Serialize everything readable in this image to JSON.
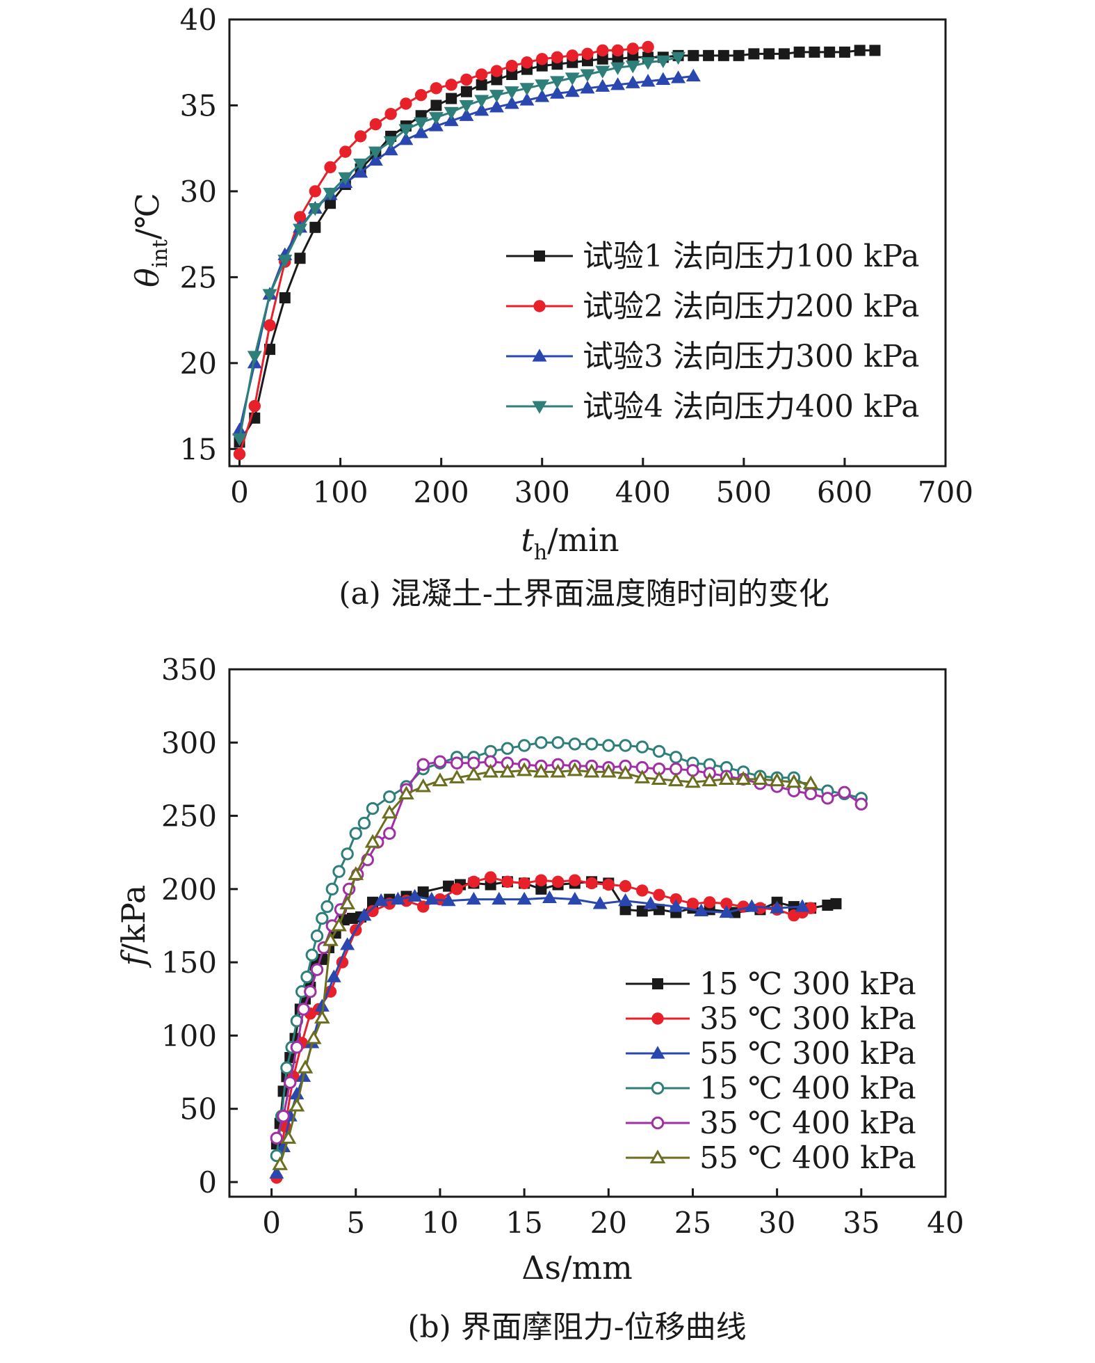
{
  "chart_data": [
    {
      "id": "a",
      "type": "line",
      "caption": "(a) 混凝土-土界面温度随时间的变化",
      "xlabel_main": "t",
      "xlabel_sub": "h",
      "xlabel_unit": "/min",
      "ylabel_main": "θ",
      "ylabel_sub": "int",
      "ylabel_unit": "/℃",
      "xlim": [
        -10,
        700
      ],
      "ylim": [
        14,
        40
      ],
      "xticks": [
        0,
        100,
        200,
        300,
        400,
        500,
        600,
        700
      ],
      "yticks": [
        15,
        20,
        25,
        30,
        35,
        40
      ],
      "legend_position": "center-right",
      "series": [
        {
          "name": "试验1 法向压力100 kPa",
          "color": "#1a1a1a",
          "marker": "square",
          "x": [
            0,
            15,
            30,
            45,
            60,
            75,
            90,
            105,
            120,
            135,
            150,
            165,
            180,
            195,
            210,
            225,
            240,
            255,
            270,
            285,
            300,
            315,
            330,
            345,
            360,
            375,
            390,
            405,
            420,
            435,
            450,
            465,
            480,
            495,
            510,
            525,
            540,
            555,
            570,
            585,
            600,
            615,
            630
          ],
          "y": [
            15.4,
            16.8,
            20.8,
            23.8,
            26.1,
            27.9,
            29.3,
            30.4,
            31.3,
            32.2,
            33.2,
            33.8,
            34.4,
            35.0,
            35.4,
            35.8,
            36.2,
            36.5,
            36.8,
            37.1,
            37.3,
            37.4,
            37.5,
            37.6,
            37.7,
            37.7,
            37.8,
            37.8,
            37.8,
            37.9,
            37.9,
            37.9,
            37.9,
            37.9,
            38.0,
            38.0,
            38.0,
            38.1,
            38.1,
            38.1,
            38.1,
            38.2,
            38.2
          ]
        },
        {
          "name": "试验2 法向压力200 kPa",
          "color": "#e8202a",
          "marker": "circle",
          "x": [
            0,
            15,
            30,
            45,
            60,
            75,
            90,
            105,
            120,
            135,
            150,
            165,
            180,
            195,
            210,
            225,
            240,
            255,
            270,
            285,
            300,
            315,
            330,
            345,
            360,
            375,
            390,
            405
          ],
          "y": [
            14.7,
            17.5,
            22.2,
            25.9,
            28.5,
            30.0,
            31.4,
            32.3,
            33.2,
            33.9,
            34.5,
            35.1,
            35.6,
            36.0,
            36.2,
            36.5,
            36.8,
            37.0,
            37.3,
            37.5,
            37.7,
            37.8,
            37.9,
            38.0,
            38.2,
            38.2,
            38.3,
            38.4
          ]
        },
        {
          "name": "试验3 法向压力300 kPa",
          "color": "#2a47b0",
          "marker": "triangle-up",
          "x": [
            0,
            15,
            30,
            45,
            60,
            75,
            90,
            105,
            120,
            135,
            150,
            165,
            180,
            195,
            210,
            225,
            240,
            255,
            270,
            285,
            300,
            315,
            330,
            345,
            360,
            375,
            390,
            405,
            420,
            435,
            450
          ],
          "y": [
            16.1,
            20.0,
            24.0,
            26.3,
            27.9,
            29.0,
            29.8,
            30.5,
            31.1,
            31.8,
            32.4,
            33.0,
            33.4,
            33.8,
            34.1,
            34.4,
            34.7,
            34.9,
            35.1,
            35.3,
            35.5,
            35.7,
            35.8,
            36.0,
            36.1,
            36.2,
            36.3,
            36.4,
            36.5,
            36.6,
            36.7
          ]
        },
        {
          "name": "试验4 法向压力400 kPa",
          "color": "#2e7f7a",
          "marker": "triangle-down",
          "x": [
            0,
            15,
            30,
            45,
            60,
            75,
            90,
            105,
            120,
            135,
            150,
            165,
            180,
            195,
            210,
            225,
            240,
            255,
            270,
            285,
            300,
            315,
            330,
            345,
            360,
            375,
            390,
            405,
            420,
            435
          ],
          "y": [
            15.6,
            20.4,
            24.0,
            26.0,
            27.8,
            29.0,
            29.9,
            30.8,
            31.6,
            32.3,
            32.9,
            33.6,
            34.0,
            34.3,
            34.6,
            35.0,
            35.3,
            35.6,
            35.8,
            36.0,
            36.2,
            36.4,
            36.6,
            36.8,
            37.0,
            37.2,
            37.3,
            37.5,
            37.6,
            37.8
          ]
        }
      ]
    },
    {
      "id": "b",
      "type": "line",
      "caption": "(b) 界面摩阻力-位移曲线",
      "xlabel_main": "Δs",
      "xlabel_unit": "/mm",
      "ylabel_main": "f",
      "ylabel_unit": "/kPa",
      "xlim": [
        -2.5,
        40
      ],
      "ylim": [
        -10,
        350
      ],
      "xticks": [
        0,
        5,
        10,
        15,
        20,
        25,
        30,
        35,
        40
      ],
      "yticks": [
        0,
        50,
        100,
        150,
        200,
        250,
        300,
        350
      ],
      "legend_position": "lower-right",
      "series": [
        {
          "name": "15 ℃ 300 kPa",
          "color": "#1a1a1a",
          "marker": "square",
          "filled": true,
          "x": [
            0.3,
            0.5,
            0.7,
            0.9,
            1.1,
            1.4,
            1.7,
            2.0,
            2.3,
            2.6,
            3.0,
            3.4,
            3.8,
            4.3,
            4.8,
            5.3,
            6.0,
            7.0,
            8.0,
            9.0,
            10.5,
            11.2,
            12.0,
            13.0,
            14.0,
            15.0,
            16.0,
            17.0,
            18.0,
            19.0,
            20.0,
            21.0,
            22.0,
            23.0,
            24.0,
            25.0,
            26.0,
            27.5,
            29.0,
            30.0,
            31.0,
            32.0,
            33.0,
            33.5
          ],
          "y": [
            26,
            40,
            62,
            72,
            85,
            98,
            118,
            125,
            133,
            148,
            152,
            160,
            170,
            179,
            180,
            181,
            191,
            193,
            195,
            198,
            202,
            203,
            204,
            203,
            205,
            204,
            200,
            203,
            204,
            205,
            204,
            186,
            185,
            186,
            184,
            187,
            186,
            184,
            186,
            191,
            188,
            187,
            189,
            190
          ]
        },
        {
          "name": "35 ℃ 300 kPa",
          "color": "#e8202a",
          "marker": "circle",
          "filled": true,
          "x": [
            0.3,
            0.8,
            1.3,
            1.8,
            2.3,
            2.8,
            3.5,
            4.2,
            5.0,
            6.0,
            7.0,
            8.0,
            9.0,
            10.0,
            11.0,
            12.0,
            13.0,
            14.0,
            15.0,
            16.0,
            17.0,
            18.0,
            19.0,
            20.0,
            21.0,
            22.0,
            23.0,
            24.0,
            25.0,
            26.0,
            27.0,
            28.0,
            29.0,
            30.0,
            31.0,
            31.5,
            32.0
          ],
          "y": [
            3,
            38,
            72,
            95,
            115,
            118,
            130,
            150,
            172,
            185,
            190,
            192,
            188,
            193,
            200,
            205,
            208,
            205,
            204,
            206,
            205,
            206,
            204,
            203,
            202,
            199,
            196,
            193,
            190,
            191,
            190,
            188,
            187,
            186,
            182,
            184,
            187
          ]
        },
        {
          "name": "55 ℃ 300 kPa",
          "color": "#2a47b0",
          "marker": "triangle-up",
          "filled": true,
          "x": [
            0.3,
            0.7,
            1.1,
            1.5,
            1.9,
            2.4,
            3.0,
            3.7,
            4.5,
            5.5,
            6.5,
            7.5,
            8.5,
            9.5,
            10.5,
            12.0,
            13.5,
            15.0,
            16.5,
            18.0,
            19.5,
            21.0,
            22.5,
            24.0,
            25.5,
            27.0,
            28.5,
            30.0,
            31.5
          ],
          "y": [
            6,
            24,
            45,
            60,
            72,
            95,
            120,
            140,
            162,
            182,
            192,
            193,
            195,
            193,
            192,
            193,
            193,
            193,
            194,
            193,
            190,
            192,
            190,
            188,
            185,
            184,
            188,
            187,
            188
          ]
        },
        {
          "name": "15 ℃ 400 kPa",
          "color": "#2e7f7a",
          "marker": "circle",
          "filled": false,
          "x": [
            0.3,
            0.6,
            0.9,
            1.2,
            1.5,
            1.8,
            2.1,
            2.4,
            2.7,
            3.0,
            3.3,
            3.6,
            4.0,
            4.5,
            5.0,
            5.5,
            6.0,
            7.0,
            8.0,
            9.0,
            10.0,
            11.0,
            12.0,
            13.0,
            14.0,
            15.0,
            16.0,
            17.0,
            18.0,
            19.0,
            20.0,
            21.0,
            22.0,
            23.0,
            24.0,
            25.0,
            26.0,
            27.0,
            28.0,
            29.0,
            30.0,
            31.0,
            32.0,
            33.0,
            34.0,
            35.0
          ],
          "y": [
            18,
            45,
            78,
            92,
            110,
            130,
            140,
            155,
            168,
            180,
            188,
            200,
            212,
            224,
            238,
            245,
            255,
            263,
            270,
            282,
            286,
            290,
            290,
            294,
            296,
            298,
            300,
            300,
            299,
            299,
            298,
            298,
            297,
            294,
            290,
            286,
            285,
            283,
            280,
            277,
            276,
            276,
            269,
            267,
            265,
            262
          ]
        },
        {
          "name": "35 ℃ 400 kPa",
          "color": "#a02fa6",
          "marker": "circle",
          "filled": false,
          "x": [
            0.3,
            0.7,
            1.1,
            1.5,
            1.9,
            2.3,
            2.7,
            3.1,
            3.6,
            4.1,
            4.6,
            5.1,
            5.7,
            6.3,
            7.0,
            8.0,
            9.0,
            10.0,
            11.0,
            12.0,
            13.0,
            14.0,
            15.0,
            16.0,
            17.0,
            18.0,
            19.0,
            20.0,
            21.0,
            22.0,
            23.0,
            24.0,
            25.0,
            26.0,
            27.0,
            28.0,
            29.0,
            30.0,
            31.0,
            32.0,
            33.0,
            34.0,
            35.0
          ],
          "y": [
            30,
            45,
            68,
            92,
            118,
            130,
            145,
            160,
            175,
            186,
            200,
            210,
            220,
            232,
            238,
            268,
            285,
            287,
            286,
            286,
            287,
            286,
            285,
            284,
            285,
            284,
            284,
            283,
            284,
            283,
            282,
            282,
            281,
            279,
            277,
            275,
            272,
            270,
            267,
            265,
            262,
            266,
            258
          ]
        },
        {
          "name": "55 ℃ 400 kPa",
          "color": "#6b6e1e",
          "marker": "triangle-up",
          "filled": false,
          "x": [
            0.5,
            1.0,
            1.5,
            2.0,
            2.5,
            3.0,
            3.5,
            4.0,
            4.5,
            5.0,
            6.0,
            7.0,
            8.0,
            9.0,
            10.0,
            11.0,
            12.0,
            13.0,
            14.0,
            15.0,
            16.0,
            17.0,
            18.0,
            19.0,
            20.0,
            21.0,
            22.0,
            23.0,
            24.0,
            25.0,
            26.0,
            27.0,
            28.0,
            29.0,
            30.0,
            31.0,
            32.0
          ],
          "y": [
            12,
            30,
            52,
            78,
            98,
            112,
            165,
            175,
            190,
            210,
            232,
            252,
            265,
            270,
            274,
            276,
            278,
            280,
            280,
            281,
            280,
            280,
            281,
            280,
            280,
            279,
            276,
            275,
            274,
            273,
            274,
            275,
            275,
            275,
            274,
            273,
            272
          ]
        }
      ]
    }
  ]
}
